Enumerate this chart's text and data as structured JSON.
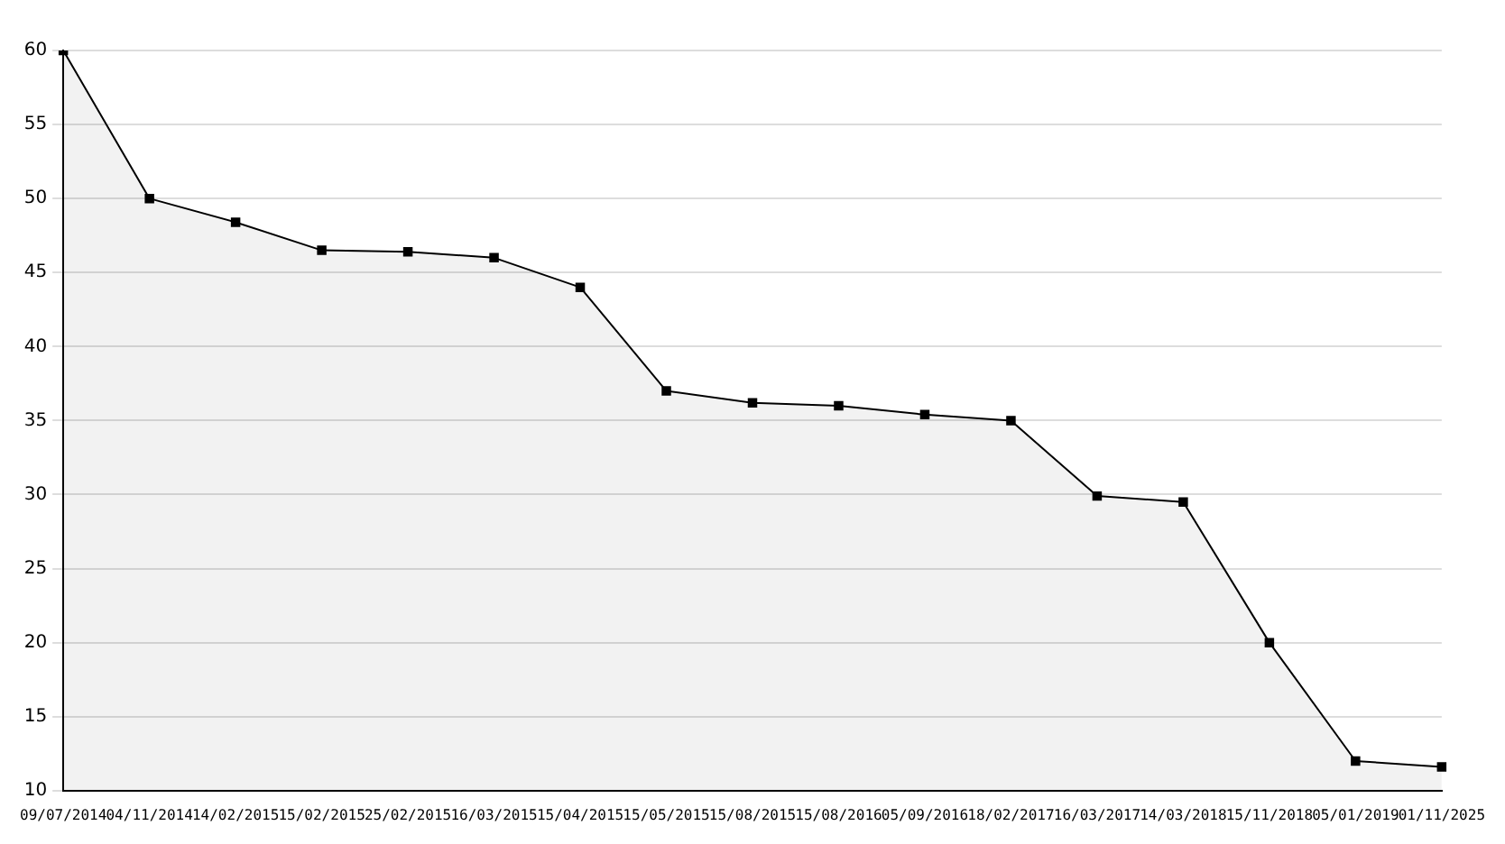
{
  "chart_data": {
    "type": "area",
    "categories": [
      "09/07/2014",
      "04/11/2014",
      "14/02/2015",
      "15/02/2015",
      "25/02/2015",
      "16/03/2015",
      "15/04/2015",
      "15/05/2015",
      "15/08/2015",
      "15/08/2016",
      "05/09/2016",
      "18/02/2017",
      "16/03/2017",
      "14/03/2018",
      "15/11/2018",
      "05/01/2019",
      "01/11/2025"
    ],
    "series": [
      {
        "color": "#000000",
        "values": [
          60,
          50,
          48.4,
          46.5,
          46.4,
          46.0,
          44.0,
          37.0,
          36.2,
          36.0,
          35.4,
          35.0,
          29.9,
          29.5,
          20.0,
          12.0,
          11.6
        ]
      }
    ],
    "ylim": [
      10,
      60
    ],
    "yticks": [
      10,
      15,
      20,
      25,
      30,
      35,
      40,
      45,
      50,
      55,
      60
    ],
    "grid": "y",
    "legend": false,
    "marker": "square",
    "line_style": "solid"
  }
}
